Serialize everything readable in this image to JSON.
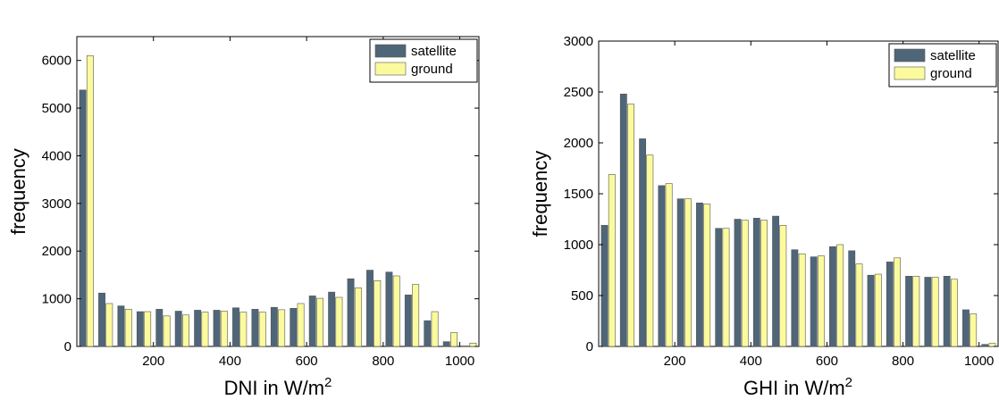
{
  "colors": {
    "satellite": "#4f6679",
    "ground": "#fbfb9d",
    "axis": "#000000"
  },
  "chart_data": [
    {
      "type": "bar",
      "xlabel": "DNI in W/m",
      "xlabel_sup": "2",
      "ylabel": "frequency",
      "xlim": [
        0,
        1050
      ],
      "ylim": [
        0,
        6500
      ],
      "xticks": [
        200,
        400,
        600,
        800,
        1000
      ],
      "yticks": [
        0,
        1000,
        2000,
        3000,
        4000,
        5000,
        6000
      ],
      "legend": {
        "position": "top-right",
        "entries": [
          "satellite",
          "ground"
        ]
      },
      "bin_centers": [
        25,
        75,
        125,
        175,
        225,
        275,
        325,
        375,
        425,
        475,
        525,
        575,
        625,
        675,
        725,
        775,
        825,
        875,
        925,
        975,
        1025
      ],
      "series": [
        {
          "name": "satellite",
          "values": [
            5380,
            1120,
            850,
            730,
            780,
            740,
            760,
            760,
            810,
            780,
            820,
            800,
            1060,
            1140,
            1420,
            1600,
            1560,
            1080,
            540,
            100,
            10
          ]
        },
        {
          "name": "ground",
          "values": [
            6100,
            900,
            780,
            730,
            640,
            660,
            720,
            740,
            720,
            720,
            770,
            900,
            1010,
            1030,
            1230,
            1380,
            1480,
            1300,
            730,
            290,
            70
          ]
        }
      ]
    },
    {
      "type": "bar",
      "xlabel": "GHI in W/m",
      "xlabel_sup": "2",
      "ylabel": "frequency",
      "xlim": [
        0,
        1050
      ],
      "ylim": [
        0,
        3000
      ],
      "xticks": [
        200,
        400,
        600,
        800,
        1000
      ],
      "yticks": [
        0,
        500,
        1000,
        1500,
        2000,
        2500,
        3000
      ],
      "legend": {
        "position": "top-right",
        "entries": [
          "satellite",
          "ground"
        ]
      },
      "bin_centers": [
        25,
        75,
        125,
        175,
        225,
        275,
        325,
        375,
        425,
        475,
        525,
        575,
        625,
        675,
        725,
        775,
        825,
        875,
        925,
        975,
        1025
      ],
      "series": [
        {
          "name": "satellite",
          "values": [
            1190,
            2480,
            2040,
            1580,
            1450,
            1410,
            1160,
            1250,
            1260,
            1280,
            950,
            880,
            980,
            940,
            700,
            830,
            690,
            680,
            690,
            360,
            20
          ]
        },
        {
          "name": "ground",
          "values": [
            1690,
            2380,
            1880,
            1600,
            1450,
            1400,
            1160,
            1240,
            1240,
            1190,
            910,
            890,
            1000,
            810,
            710,
            870,
            690,
            680,
            660,
            320,
            30
          ]
        }
      ]
    }
  ]
}
